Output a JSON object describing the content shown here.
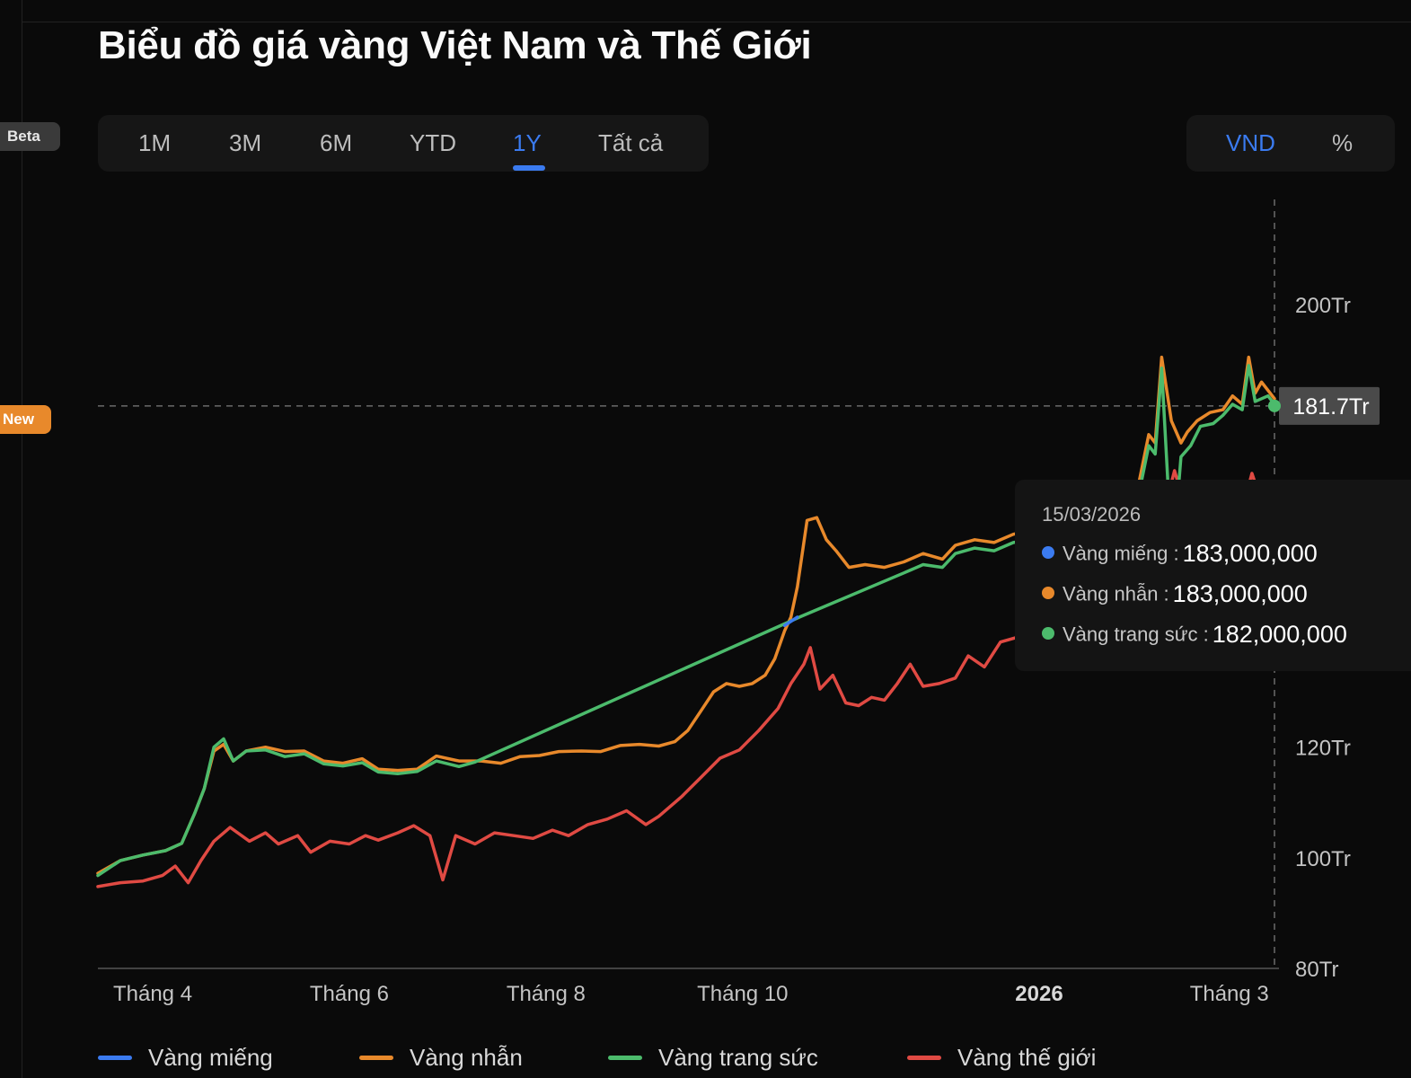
{
  "side_badges": {
    "beta": "Beta",
    "new": "New"
  },
  "header": {
    "title": "Biểu đồ giá vàng Việt Nam và Thế Giới"
  },
  "range_tabs": [
    {
      "label": "1M",
      "active": false
    },
    {
      "label": "3M",
      "active": false
    },
    {
      "label": "6M",
      "active": false
    },
    {
      "label": "YTD",
      "active": false
    },
    {
      "label": "1Y",
      "active": true
    },
    {
      "label": "Tất cả",
      "active": false
    }
  ],
  "unit_toggle": [
    {
      "label": "VND",
      "active": true
    },
    {
      "label": "%",
      "active": false
    }
  ],
  "tooltip": {
    "date": "15/03/2026",
    "rows": [
      {
        "label": "Vàng miếng :",
        "value": "183,000,000",
        "color": "#3b7bf0"
      },
      {
        "label": "Vàng nhẫn :",
        "value": "183,000,000",
        "color": "#e8892b"
      },
      {
        "label": "Vàng trang sức :",
        "value": "182,000,000",
        "color": "#4cbb6c"
      }
    ]
  },
  "crosshair_label": "181.7Tr",
  "colors": {
    "blue": "#3b7bf0",
    "orange": "#e8892b",
    "green": "#4cbb6c",
    "red": "#e04a43",
    "background": "#0a0a0a"
  },
  "chart_data": {
    "type": "line",
    "x_range": [
      "2025-03-15",
      "2026-03-15"
    ],
    "ylim": [
      80,
      220
    ],
    "y_unit": "Tr",
    "y_ticks": [
      {
        "value": 80,
        "label": "80Tr"
      },
      {
        "value": 100,
        "label": "100Tr"
      },
      {
        "value": 120,
        "label": "120Tr"
      },
      {
        "value": 200,
        "label": "200Tr"
      }
    ],
    "x_ticks": [
      {
        "date": "2025-04-01",
        "label": "Tháng 4",
        "bold": false
      },
      {
        "date": "2025-06-01",
        "label": "Tháng 6",
        "bold": false
      },
      {
        "date": "2025-08-01",
        "label": "Tháng 8",
        "bold": false
      },
      {
        "date": "2025-10-01",
        "label": "Tháng 10",
        "bold": false
      },
      {
        "date": "2026-01-01",
        "label": "2026",
        "bold": true
      },
      {
        "date": "2026-03-01",
        "label": "Tháng 3",
        "bold": false
      }
    ],
    "crosshair": {
      "date": "2026-03-15",
      "value": 181.7
    },
    "legend": [
      "Vàng miếng",
      "Vàng nhẫn",
      "Vàng trang sức",
      "Vàng thế giới"
    ],
    "series": [
      {
        "name": "Vàng miếng",
        "color": "#3b7bf0",
        "points": [
          [
            "2025-10-14",
            142.0
          ],
          [
            "2025-10-18",
            143.5
          ]
        ]
      },
      {
        "name": "Vàng nhẫn",
        "color": "#e8892b",
        "points": [
          [
            "2025-03-15",
            97.2
          ],
          [
            "2025-03-22",
            99.5
          ],
          [
            "2025-03-29",
            100.5
          ],
          [
            "2025-04-05",
            101.3
          ],
          [
            "2025-04-10",
            102.6
          ],
          [
            "2025-04-14",
            108.0
          ],
          [
            "2025-04-17",
            112.5
          ],
          [
            "2025-04-20",
            119.3
          ],
          [
            "2025-04-23",
            120.5
          ],
          [
            "2025-04-26",
            117.5
          ],
          [
            "2025-04-30",
            119.3
          ],
          [
            "2025-05-06",
            120.0
          ],
          [
            "2025-05-12",
            119.2
          ],
          [
            "2025-05-18",
            119.3
          ],
          [
            "2025-05-24",
            117.5
          ],
          [
            "2025-05-30",
            117.1
          ],
          [
            "2025-06-05",
            117.9
          ],
          [
            "2025-06-10",
            116.0
          ],
          [
            "2025-06-16",
            115.8
          ],
          [
            "2025-06-22",
            116.0
          ],
          [
            "2025-06-28",
            118.4
          ],
          [
            "2025-07-05",
            117.5
          ],
          [
            "2025-07-12",
            117.5
          ],
          [
            "2025-07-18",
            117.1
          ],
          [
            "2025-07-24",
            118.3
          ],
          [
            "2025-07-30",
            118.5
          ],
          [
            "2025-08-05",
            119.2
          ],
          [
            "2025-08-12",
            119.3
          ],
          [
            "2025-08-18",
            119.2
          ],
          [
            "2025-08-24",
            120.3
          ],
          [
            "2025-08-30",
            120.5
          ],
          [
            "2025-09-05",
            120.2
          ],
          [
            "2025-09-10",
            121.0
          ],
          [
            "2025-09-14",
            123.0
          ],
          [
            "2025-09-18",
            126.5
          ],
          [
            "2025-09-22",
            130.0
          ],
          [
            "2025-09-26",
            131.5
          ],
          [
            "2025-09-30",
            131.0
          ],
          [
            "2025-10-04",
            131.5
          ],
          [
            "2025-10-08",
            133.0
          ],
          [
            "2025-10-11",
            136.0
          ],
          [
            "2025-10-14",
            141.0
          ],
          [
            "2025-10-16",
            143.5
          ],
          [
            "2025-10-18",
            149.0
          ],
          [
            "2025-10-21",
            161.0
          ],
          [
            "2025-10-24",
            161.5
          ],
          [
            "2025-10-27",
            157.5
          ],
          [
            "2025-10-30",
            155.5
          ],
          [
            "2025-11-03",
            152.5
          ],
          [
            "2025-11-08",
            153.0
          ],
          [
            "2025-11-14",
            152.5
          ],
          [
            "2025-11-20",
            153.5
          ],
          [
            "2025-11-26",
            155.0
          ],
          [
            "2025-12-02",
            154.0
          ],
          [
            "2025-12-06",
            156.5
          ],
          [
            "2025-12-12",
            157.5
          ],
          [
            "2025-12-18",
            157.0
          ],
          [
            "2025-12-24",
            158.5
          ],
          [
            "2025-12-30",
            159.2
          ],
          [
            "2026-01-03",
            158.8
          ]
        ]
      },
      {
        "name": "Vàng trang sức",
        "color": "#4cbb6c",
        "points": [
          [
            "2025-03-15",
            96.8
          ],
          [
            "2025-03-22",
            99.5
          ],
          [
            "2025-03-29",
            100.5
          ],
          [
            "2025-04-05",
            101.3
          ],
          [
            "2025-04-10",
            102.6
          ],
          [
            "2025-04-14",
            108.0
          ],
          [
            "2025-04-17",
            112.5
          ],
          [
            "2025-04-20",
            120.0
          ],
          [
            "2025-04-23",
            121.5
          ],
          [
            "2025-04-26",
            117.5
          ],
          [
            "2025-04-30",
            119.3
          ],
          [
            "2025-05-06",
            119.5
          ],
          [
            "2025-05-12",
            118.3
          ],
          [
            "2025-05-18",
            118.8
          ],
          [
            "2025-05-24",
            117.0
          ],
          [
            "2025-05-30",
            116.6
          ],
          [
            "2025-06-05",
            117.2
          ],
          [
            "2025-06-10",
            115.5
          ],
          [
            "2025-06-16",
            115.2
          ],
          [
            "2025-06-22",
            115.6
          ],
          [
            "2025-06-28",
            117.5
          ],
          [
            "2025-07-05",
            116.5
          ],
          [
            "2025-07-10",
            117.3
          ],
          [
            "2025-10-19",
            143.6
          ],
          [
            "2025-11-20",
            151.5
          ],
          [
            "2025-11-26",
            153.0
          ],
          [
            "2025-12-02",
            152.5
          ],
          [
            "2025-12-06",
            155.0
          ],
          [
            "2025-12-12",
            156.0
          ],
          [
            "2025-12-18",
            155.5
          ],
          [
            "2025-12-24",
            157.0
          ],
          [
            "2025-12-30",
            157.5
          ],
          [
            "2026-01-03",
            157.2
          ]
        ]
      },
      {
        "name": "Vàng thế giới",
        "color": "#e04a43",
        "points": [
          [
            "2025-03-15",
            94.8
          ],
          [
            "2025-03-22",
            95.5
          ],
          [
            "2025-03-29",
            95.8
          ],
          [
            "2025-04-04",
            96.8
          ],
          [
            "2025-04-08",
            98.5
          ],
          [
            "2025-04-12",
            95.5
          ],
          [
            "2025-04-16",
            99.5
          ],
          [
            "2025-04-20",
            103.0
          ],
          [
            "2025-04-25",
            105.5
          ],
          [
            "2025-05-01",
            103.0
          ],
          [
            "2025-05-06",
            104.5
          ],
          [
            "2025-05-10",
            102.5
          ],
          [
            "2025-05-16",
            104.0
          ],
          [
            "2025-05-20",
            101.0
          ],
          [
            "2025-05-26",
            103.0
          ],
          [
            "2025-06-01",
            102.5
          ],
          [
            "2025-06-06",
            104.0
          ],
          [
            "2025-06-10",
            103.2
          ],
          [
            "2025-06-16",
            104.5
          ],
          [
            "2025-06-21",
            105.8
          ],
          [
            "2025-06-26",
            104.0
          ],
          [
            "2025-06-30",
            96.0
          ],
          [
            "2025-07-04",
            104.0
          ],
          [
            "2025-07-10",
            102.5
          ],
          [
            "2025-07-16",
            104.5
          ],
          [
            "2025-07-22",
            104.0
          ],
          [
            "2025-07-28",
            103.5
          ],
          [
            "2025-08-03",
            105.0
          ],
          [
            "2025-08-08",
            104.0
          ],
          [
            "2025-08-14",
            106.0
          ],
          [
            "2025-08-20",
            107.0
          ],
          [
            "2025-08-26",
            108.5
          ],
          [
            "2025-09-01",
            106.0
          ],
          [
            "2025-09-05",
            107.5
          ],
          [
            "2025-09-12",
            111.0
          ],
          [
            "2025-09-18",
            114.5
          ],
          [
            "2025-09-24",
            118.0
          ],
          [
            "2025-09-30",
            119.5
          ],
          [
            "2025-10-06",
            123.0
          ],
          [
            "2025-10-12",
            127.0
          ],
          [
            "2025-10-16",
            131.5
          ],
          [
            "2025-10-20",
            135.0
          ],
          [
            "2025-10-22",
            138.0
          ],
          [
            "2025-10-25",
            130.5
          ],
          [
            "2025-10-29",
            133.0
          ],
          [
            "2025-11-02",
            128.0
          ],
          [
            "2025-11-06",
            127.5
          ],
          [
            "2025-11-10",
            129.0
          ],
          [
            "2025-11-14",
            128.5
          ],
          [
            "2025-11-18",
            131.5
          ],
          [
            "2025-11-22",
            135.0
          ],
          [
            "2025-11-26",
            131.0
          ],
          [
            "2025-12-01",
            131.5
          ],
          [
            "2025-12-06",
            132.5
          ],
          [
            "2025-12-10",
            136.5
          ],
          [
            "2025-12-15",
            134.5
          ],
          [
            "2025-12-20",
            139.0
          ],
          [
            "2025-12-26",
            140.0
          ],
          [
            "2026-01-02",
            145.0
          ]
        ]
      }
    ],
    "overlay_series": [
      {
        "name": "Vàng nhẫn",
        "color": "#e8892b",
        "points": [
          [
            "2026-01-30",
            161.5
          ],
          [
            "2026-02-01",
            168.0
          ],
          [
            "2026-02-04",
            176.5
          ],
          [
            "2026-02-06",
            175.0
          ],
          [
            "2026-02-08",
            190.5
          ],
          [
            "2026-02-11",
            179.0
          ],
          [
            "2026-02-14",
            175.0
          ],
          [
            "2026-02-16",
            177.0
          ],
          [
            "2026-02-19",
            179.0
          ],
          [
            "2026-02-23",
            180.5
          ],
          [
            "2026-02-27",
            181.0
          ],
          [
            "2026-03-02",
            183.5
          ],
          [
            "2026-03-05",
            182.0
          ],
          [
            "2026-03-07",
            190.5
          ],
          [
            "2026-03-09",
            184.0
          ],
          [
            "2026-03-11",
            186.0
          ],
          [
            "2026-03-13",
            184.5
          ],
          [
            "2026-03-15",
            183.0
          ]
        ]
      },
      {
        "name": "Vàng trang sức",
        "color": "#4cbb6c",
        "points": [
          [
            "2026-01-30",
            160.5
          ],
          [
            "2026-02-01",
            166.0
          ],
          [
            "2026-02-04",
            174.5
          ],
          [
            "2026-02-06",
            173.0
          ],
          [
            "2026-02-08",
            188.5
          ],
          [
            "2026-02-10",
            167.0
          ],
          [
            "2026-02-12",
            158.0
          ],
          [
            "2026-02-14",
            172.5
          ],
          [
            "2026-02-17",
            174.5
          ],
          [
            "2026-02-20",
            178.0
          ],
          [
            "2026-02-24",
            178.5
          ],
          [
            "2026-02-27",
            180.0
          ],
          [
            "2026-03-02",
            182.0
          ],
          [
            "2026-03-05",
            181.0
          ],
          [
            "2026-03-07",
            189.0
          ],
          [
            "2026-03-09",
            182.5
          ],
          [
            "2026-03-11",
            183.0
          ],
          [
            "2026-03-13",
            183.5
          ],
          [
            "2026-03-15",
            182.0
          ]
        ]
      },
      {
        "name": "Vàng thế giới",
        "color": "#e04a43",
        "points": [
          [
            "2026-02-10",
            165.5
          ],
          [
            "2026-02-12",
            170.0
          ],
          [
            "2026-02-14",
            166.0
          ],
          [
            "2026-03-06",
            165.0
          ],
          [
            "2026-03-08",
            169.5
          ],
          [
            "2026-03-10",
            166.0
          ]
        ]
      }
    ]
  }
}
